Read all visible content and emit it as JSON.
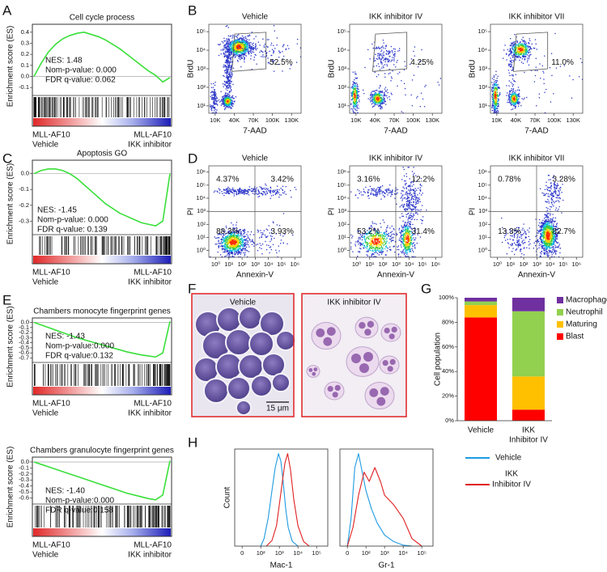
{
  "A": {
    "letter": "A",
    "title": "Cell cycle process",
    "ylabel": "Enrichment score (ES)",
    "ylim": [
      -0.15,
      0.45
    ],
    "yticks": [
      0.4,
      0.3,
      0.2,
      0.1,
      {
        "value": 0,
        "label": "0.0"
      },
      -0.1
    ],
    "stats": [
      "NES: 1.48",
      "Nom-p-value: 0.000",
      "FDR q-value: 0.062"
    ],
    "left_label": [
      "MLL-AF10",
      "Vehicle"
    ],
    "right_label": [
      "MLL-AF10",
      "IKK inhibitor"
    ],
    "es": [
      0,
      0.12,
      0.22,
      0.29,
      0.34,
      0.37,
      0.39,
      0.4,
      0.38,
      0.36,
      0.33,
      0.29,
      0.25,
      0.2,
      0.15,
      0.1,
      0.05,
      0.01,
      -0.05,
      -0.01
    ]
  },
  "B": {
    "letter": "B",
    "xlabel": "7-AAD",
    "ylabel": "BrdU",
    "xlim": [
      0,
      145000
    ],
    "ylim": [
      4,
      250000
    ],
    "xticks": [
      {
        "value": 10000,
        "label": "10K"
      },
      {
        "value": 40000,
        "label": "40K"
      },
      {
        "value": 70000,
        "label": "70K"
      },
      {
        "value": 100000,
        "label": "100K"
      },
      {
        "value": 130000,
        "label": "130K"
      }
    ],
    "yticks": [
      {
        "value": 10,
        "label": "10¹"
      },
      {
        "value": 100,
        "label": "10²"
      },
      {
        "value": 1000,
        "label": "10³"
      },
      {
        "value": 10000,
        "label": "10⁴"
      },
      {
        "value": 100000,
        "label": "10⁵"
      }
    ],
    "plots": [
      {
        "title": "Vehicle",
        "percent": "52.5%"
      },
      {
        "title": "IKK inhibitor IV",
        "percent": "4.25%"
      },
      {
        "title": "IKK inhibitor VII",
        "percent": "11.0%"
      }
    ]
  },
  "C": {
    "letter": "C",
    "title": "Apoptosis GO",
    "ylabel": "Enrichment score (ES)",
    "ylim": [
      -0.37,
      0.07
    ],
    "yticks": [
      {
        "value": 0,
        "label": "0.0"
      },
      -0.1,
      -0.2,
      -0.3
    ],
    "stats": [
      "NES: -1.45",
      "Nom-p-value: 0.000",
      "FDR q-value: 0.139"
    ],
    "left_label": [
      "MLL-AF10",
      "Vehicle"
    ],
    "right_label": [
      "MLL-AF10",
      "IKK inhibitor"
    ],
    "es": [
      0,
      0.02,
      0.03,
      0.03,
      0.02,
      0.0,
      -0.03,
      -0.07,
      -0.11,
      -0.15,
      -0.19,
      -0.22,
      -0.25,
      -0.27,
      -0.29,
      -0.31,
      -0.32,
      -0.33,
      -0.3,
      0
    ]
  },
  "D": {
    "letter": "D",
    "xlabel": "Annexin-V",
    "ylabel": "PI",
    "xlim": [
      0.3,
      3000000
    ],
    "ylim": [
      0.3,
      3000000
    ],
    "xticks": [
      {
        "value": 1,
        "label": "10⁰"
      },
      {
        "value": 10,
        "label": "10¹"
      },
      {
        "value": 100,
        "label": "10²"
      },
      {
        "value": 1000,
        "label": "10³"
      },
      {
        "value": 10000,
        "label": "10⁴"
      },
      {
        "value": 100000,
        "label": "10⁵"
      },
      {
        "value": 1000000,
        "label": "10⁶"
      }
    ],
    "yticks": [
      {
        "value": 1,
        "label": "10⁰"
      },
      {
        "value": 10,
        "label": "10¹"
      },
      {
        "value": 100,
        "label": "10²"
      },
      {
        "value": 1000,
        "label": "10³"
      },
      {
        "value": 10000,
        "label": "10⁴"
      },
      {
        "value": 100000,
        "label": "10⁵"
      },
      {
        "value": 1000000,
        "label": "10⁶"
      }
    ],
    "plots": [
      {
        "title": "Vehicle",
        "quadrants": [
          "4.37%",
          "3.42%",
          "88.3%",
          "3.93%"
        ]
      },
      {
        "title": "IKK inhibitor IV",
        "quadrants": [
          "3.16%",
          "12.2%",
          "53.2%",
          "31.4%"
        ]
      },
      {
        "title": "IKK inhibitor VII",
        "quadrants": [
          "0.78%",
          "3.28%",
          "13.3%",
          "82.7%"
        ]
      }
    ]
  },
  "E": {
    "letter": "E",
    "plots": [
      {
        "title": "Chambers monocyte fingerprint genes",
        "ylabel": "Enrichment score (ES)",
        "ylim": [
          -0.74,
          0.04
        ],
        "yticks": [
          {
            "value": 0,
            "label": "0.0"
          },
          -0.1,
          -0.2,
          -0.3,
          -0.4,
          -0.5,
          -0.6,
          -0.7
        ],
        "stats": [
          "NES: -1.43",
          "Nom-p-value:0.000",
          "FDR q-value:0.132"
        ],
        "left_label": [
          "MLL-AF10",
          "Vehicle"
        ],
        "right_label": [
          "MLL-AF10",
          "IKK inhibitor"
        ],
        "es": [
          0,
          -0.05,
          -0.1,
          -0.15,
          -0.2,
          -0.25,
          -0.3,
          -0.34,
          -0.38,
          -0.42,
          -0.46,
          -0.5,
          -0.54,
          -0.58,
          -0.61,
          -0.64,
          -0.66,
          -0.68,
          -0.6,
          0.02
        ]
      },
      {
        "title": "Chambers granulocyte fingerprint genes",
        "ylabel": "Enrichment score (ES)",
        "ylim": [
          -0.66,
          0.04
        ],
        "yticks": [
          {
            "value": 0,
            "label": "0.0"
          },
          -0.1,
          -0.2,
          -0.3,
          -0.4,
          -0.5,
          -0.6
        ],
        "stats": [
          "NES: -1.40",
          "Nom-p-value:0.000",
          "FDR q-value:0.158"
        ],
        "left_label": [
          "MLL-AF10",
          "Vehicle"
        ],
        "right_label": [
          "MLL-AF10",
          "IKK inhibitor"
        ],
        "es": [
          0,
          -0.04,
          -0.08,
          -0.12,
          -0.16,
          -0.2,
          -0.24,
          -0.28,
          -0.32,
          -0.36,
          -0.4,
          -0.44,
          -0.48,
          -0.52,
          -0.55,
          -0.58,
          -0.61,
          -0.63,
          -0.55,
          0.02
        ]
      }
    ]
  },
  "F": {
    "letter": "F",
    "images": [
      {
        "title": "Vehicle",
        "scale_bar": "15 μm"
      },
      {
        "title": "IKK inhibitor IV"
      }
    ]
  },
  "G": {
    "letter": "G",
    "ylabel": "Cell population",
    "ylim": [
      0,
      100
    ],
    "yticks": [
      {
        "value": 0,
        "label": "0%"
      },
      {
        "value": 20,
        "label": "20%"
      },
      {
        "value": 40,
        "label": "40%"
      },
      {
        "value": 60,
        "label": "60%"
      },
      {
        "value": 80,
        "label": "80%"
      },
      {
        "value": 100,
        "label": "100%"
      }
    ],
    "category_lines": [
      [
        "Vehicle"
      ],
      [
        "IKK",
        "Inhibitor IV"
      ]
    ],
    "series": [
      {
        "name": "Blast",
        "color": "#ff0000",
        "values": [
          84,
          9
        ]
      },
      {
        "name": "Maturing",
        "color": "#ffc000",
        "values": [
          10,
          27
        ]
      },
      {
        "name": "Neutrophil",
        "color": "#92d050",
        "values": [
          3,
          53
        ]
      },
      {
        "name": "Macrophage",
        "color": "#7030a0",
        "values": [
          3,
          11
        ]
      }
    ]
  },
  "H": {
    "letter": "H",
    "ylabel": "Count",
    "xlim": [
      -40,
      400000
    ],
    "ylim": [
      0,
      105
    ],
    "xticks": [
      0,
      {
        "value": 100,
        "label": "10²"
      },
      {
        "value": 1000,
        "label": "10³"
      },
      {
        "value": 10000,
        "label": "10⁴"
      },
      {
        "value": 100000,
        "label": "10⁵"
      }
    ],
    "legend": [
      {
        "lines": [
          "Vehicle"
        ],
        "color": "#1e9be0"
      },
      {
        "lines": [
          "IKK",
          "Inhibitor IV"
        ],
        "color": "#e02020"
      }
    ],
    "plots": [
      {
        "xlabel": "Mac-1",
        "series": [
          {
            "color": "#1e9be0",
            "x": [
              100,
              150,
              250,
              400,
              600,
              900,
              1200,
              1600,
              2200,
              3000,
              5000,
              10000
            ],
            "values": [
              0,
              8,
              30,
              60,
              85,
              100,
              92,
              70,
              40,
              20,
              5,
              0
            ]
          },
          {
            "color": "#e02020",
            "x": [
              200,
              400,
              700,
              1000,
              1500,
              2000,
              2800,
              4000,
              6000,
              10000,
              20000,
              40000
            ],
            "values": [
              0,
              6,
              22,
              45,
              72,
              90,
              100,
              82,
              50,
              22,
              5,
              0
            ]
          }
        ]
      },
      {
        "xlabel": "Gr-1",
        "series": [
          {
            "color": "#1e9be0",
            "x": [
              0,
              20,
              40,
              60,
              80,
              100,
              200,
              400,
              1000,
              3000,
              10000,
              30000
            ],
            "values": [
              0,
              30,
              85,
              100,
              80,
              60,
              40,
              25,
              12,
              5,
              1,
              0
            ]
          },
          {
            "color": "#e02020",
            "x": [
              0,
              30,
              60,
              90,
              150,
              300,
              600,
              1000,
              3000,
              10000,
              30000,
              100000
            ],
            "values": [
              0,
              20,
              55,
              80,
              70,
              85,
              70,
              55,
              45,
              30,
              8,
              0
            ]
          }
        ]
      }
    ]
  }
}
